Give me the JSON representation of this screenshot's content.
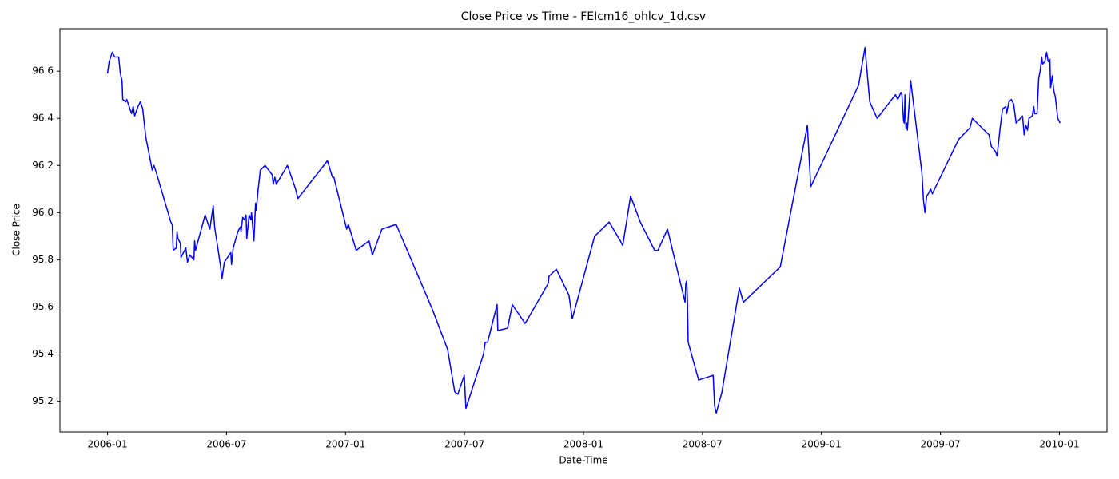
{
  "chart_data": {
    "type": "line",
    "title": "Close Price vs Time - FEIcm16_ohlcv_1d.csv",
    "x_label": "Date-Time",
    "y_label": "Close Price",
    "xlim": [
      2005.8,
      2010.2
    ],
    "ylim": [
      95.07,
      96.78
    ],
    "xticks": [
      {
        "value": 2006,
        "label": "2006-01"
      },
      {
        "value": 2006.5,
        "label": "2006-07"
      },
      {
        "value": 2007,
        "label": "2007-01"
      },
      {
        "value": 2007.5,
        "label": "2007-07"
      },
      {
        "value": 2008,
        "label": "2008-01"
      },
      {
        "value": 2008.5,
        "label": "2008-07"
      },
      {
        "value": 2009,
        "label": "2009-01"
      },
      {
        "value": 2009.5,
        "label": "2009-07"
      },
      {
        "value": 2010,
        "label": "2010-01"
      }
    ],
    "yticks": [
      95.2,
      95.4,
      95.6,
      95.8,
      {
        "value": 96,
        "label": "96.0"
      },
      96.2,
      96.4,
      96.6
    ],
    "grid": false,
    "series": [
      {
        "color": "#0000ff",
        "x": [
          2006.0,
          2006.007,
          2006.02,
          2006.03,
          2006.047,
          2006.054,
          2006.061,
          2006.064,
          2006.077,
          2006.081,
          2006.091,
          2006.101,
          2006.108,
          2006.114,
          2006.128,
          2006.138,
          2006.148,
          2006.161,
          2006.188,
          2006.195,
          2006.202,
          2006.266,
          2006.272,
          2006.276,
          2006.289,
          2006.292,
          2006.296,
          2006.306,
          2006.309,
          2006.329,
          2006.336,
          2006.346,
          2006.363,
          2006.366,
          2006.37,
          2006.41,
          2006.43,
          2006.444,
          2006.45,
          2006.474,
          2006.481,
          2006.491,
          2006.518,
          2006.521,
          2006.528,
          2006.548,
          2006.558,
          2006.561,
          2006.568,
          2006.575,
          2006.582,
          2006.585,
          2006.595,
          2006.602,
          2006.605,
          2006.615,
          2006.622,
          2006.625,
          2006.632,
          2006.642,
          2006.662,
          2006.692,
          2006.696,
          2006.703,
          2006.709,
          2006.756,
          2006.79,
          2006.8,
          2006.924,
          2006.945,
          2006.951,
          2007.005,
          2007.012,
          2007.045,
          2007.099,
          2007.113,
          2007.153,
          2007.213,
          2007.365,
          2007.429,
          2007.459,
          2007.472,
          2007.499,
          2007.506,
          2007.58,
          2007.587,
          2007.597,
          2007.637,
          2007.64,
          2007.681,
          2007.701,
          2007.755,
          2007.852,
          2007.855,
          2007.886,
          2007.939,
          2007.953,
          2008.047,
          2008.108,
          2008.155,
          2008.165,
          2008.198,
          2008.239,
          2008.299,
          2008.313,
          2008.353,
          2008.427,
          2008.43,
          2008.434,
          2008.437,
          2008.44,
          2008.484,
          2008.545,
          2008.551,
          2008.558,
          2008.582,
          2008.655,
          2008.672,
          2008.827,
          2008.941,
          2008.955,
          2009.156,
          2009.183,
          2009.203,
          2009.234,
          2009.311,
          2009.321,
          2009.334,
          2009.338,
          2009.345,
          2009.348,
          2009.351,
          2009.355,
          2009.358,
          2009.361,
          2009.375,
          2009.422,
          2009.429,
          2009.435,
          2009.442,
          2009.449,
          2009.459,
          2009.466,
          2009.576,
          2009.624,
          2009.634,
          2009.704,
          2009.714,
          2009.731,
          2009.738,
          2009.751,
          2009.761,
          2009.775,
          2009.778,
          2009.788,
          2009.798,
          2009.808,
          2009.818,
          2009.845,
          2009.852,
          2009.859,
          2009.866,
          2009.872,
          2009.886,
          2009.892,
          2009.896,
          2009.906,
          2009.913,
          2009.919,
          2009.926,
          2009.929,
          2009.939,
          2009.946,
          2009.953,
          2009.96,
          2009.963,
          2009.97,
          2009.976,
          2009.983,
          2009.993,
          2010.003
        ],
        "values": [
          96.59,
          96.64,
          96.68,
          96.66,
          96.66,
          96.59,
          96.56,
          96.48,
          96.47,
          96.48,
          96.45,
          96.42,
          96.45,
          96.41,
          96.45,
          96.47,
          96.44,
          96.32,
          96.18,
          96.2,
          96.18,
          95.96,
          95.95,
          95.84,
          95.85,
          95.92,
          95.89,
          95.87,
          95.81,
          95.85,
          95.79,
          95.82,
          95.8,
          95.88,
          95.84,
          95.99,
          95.93,
          96.03,
          95.94,
          95.78,
          95.72,
          95.79,
          95.83,
          95.78,
          95.85,
          95.92,
          95.94,
          95.92,
          95.98,
          95.97,
          95.99,
          95.89,
          95.99,
          95.97,
          96.0,
          95.88,
          96.04,
          96.01,
          96.09,
          96.18,
          96.2,
          96.16,
          96.12,
          96.15,
          96.12,
          96.2,
          96.1,
          96.06,
          96.22,
          96.15,
          96.15,
          95.93,
          95.95,
          95.84,
          95.88,
          95.82,
          95.93,
          95.95,
          95.59,
          95.42,
          95.24,
          95.23,
          95.31,
          95.17,
          95.4,
          95.45,
          95.45,
          95.61,
          95.5,
          95.51,
          95.61,
          95.53,
          95.7,
          95.73,
          95.76,
          95.65,
          95.55,
          95.9,
          95.96,
          95.88,
          95.86,
          96.07,
          95.96,
          95.84,
          95.84,
          95.93,
          95.62,
          95.7,
          95.71,
          95.62,
          95.45,
          95.29,
          95.31,
          95.18,
          95.15,
          95.24,
          95.68,
          95.62,
          95.77,
          96.37,
          96.11,
          96.54,
          96.7,
          96.47,
          96.4,
          96.5,
          96.48,
          96.51,
          96.5,
          96.39,
          96.38,
          96.5,
          96.36,
          96.38,
          96.35,
          96.56,
          96.17,
          96.05,
          96.0,
          96.07,
          96.08,
          96.1,
          96.08,
          96.31,
          96.36,
          96.4,
          96.33,
          96.28,
          96.26,
          96.24,
          96.36,
          96.44,
          96.45,
          96.42,
          96.47,
          96.48,
          96.46,
          96.38,
          96.41,
          96.33,
          96.37,
          96.35,
          96.4,
          96.41,
          96.45,
          96.42,
          96.42,
          96.57,
          96.6,
          96.66,
          96.63,
          96.64,
          96.68,
          96.64,
          96.65,
          96.53,
          96.58,
          96.52,
          96.49,
          96.4,
          96.38
        ]
      }
    ]
  }
}
